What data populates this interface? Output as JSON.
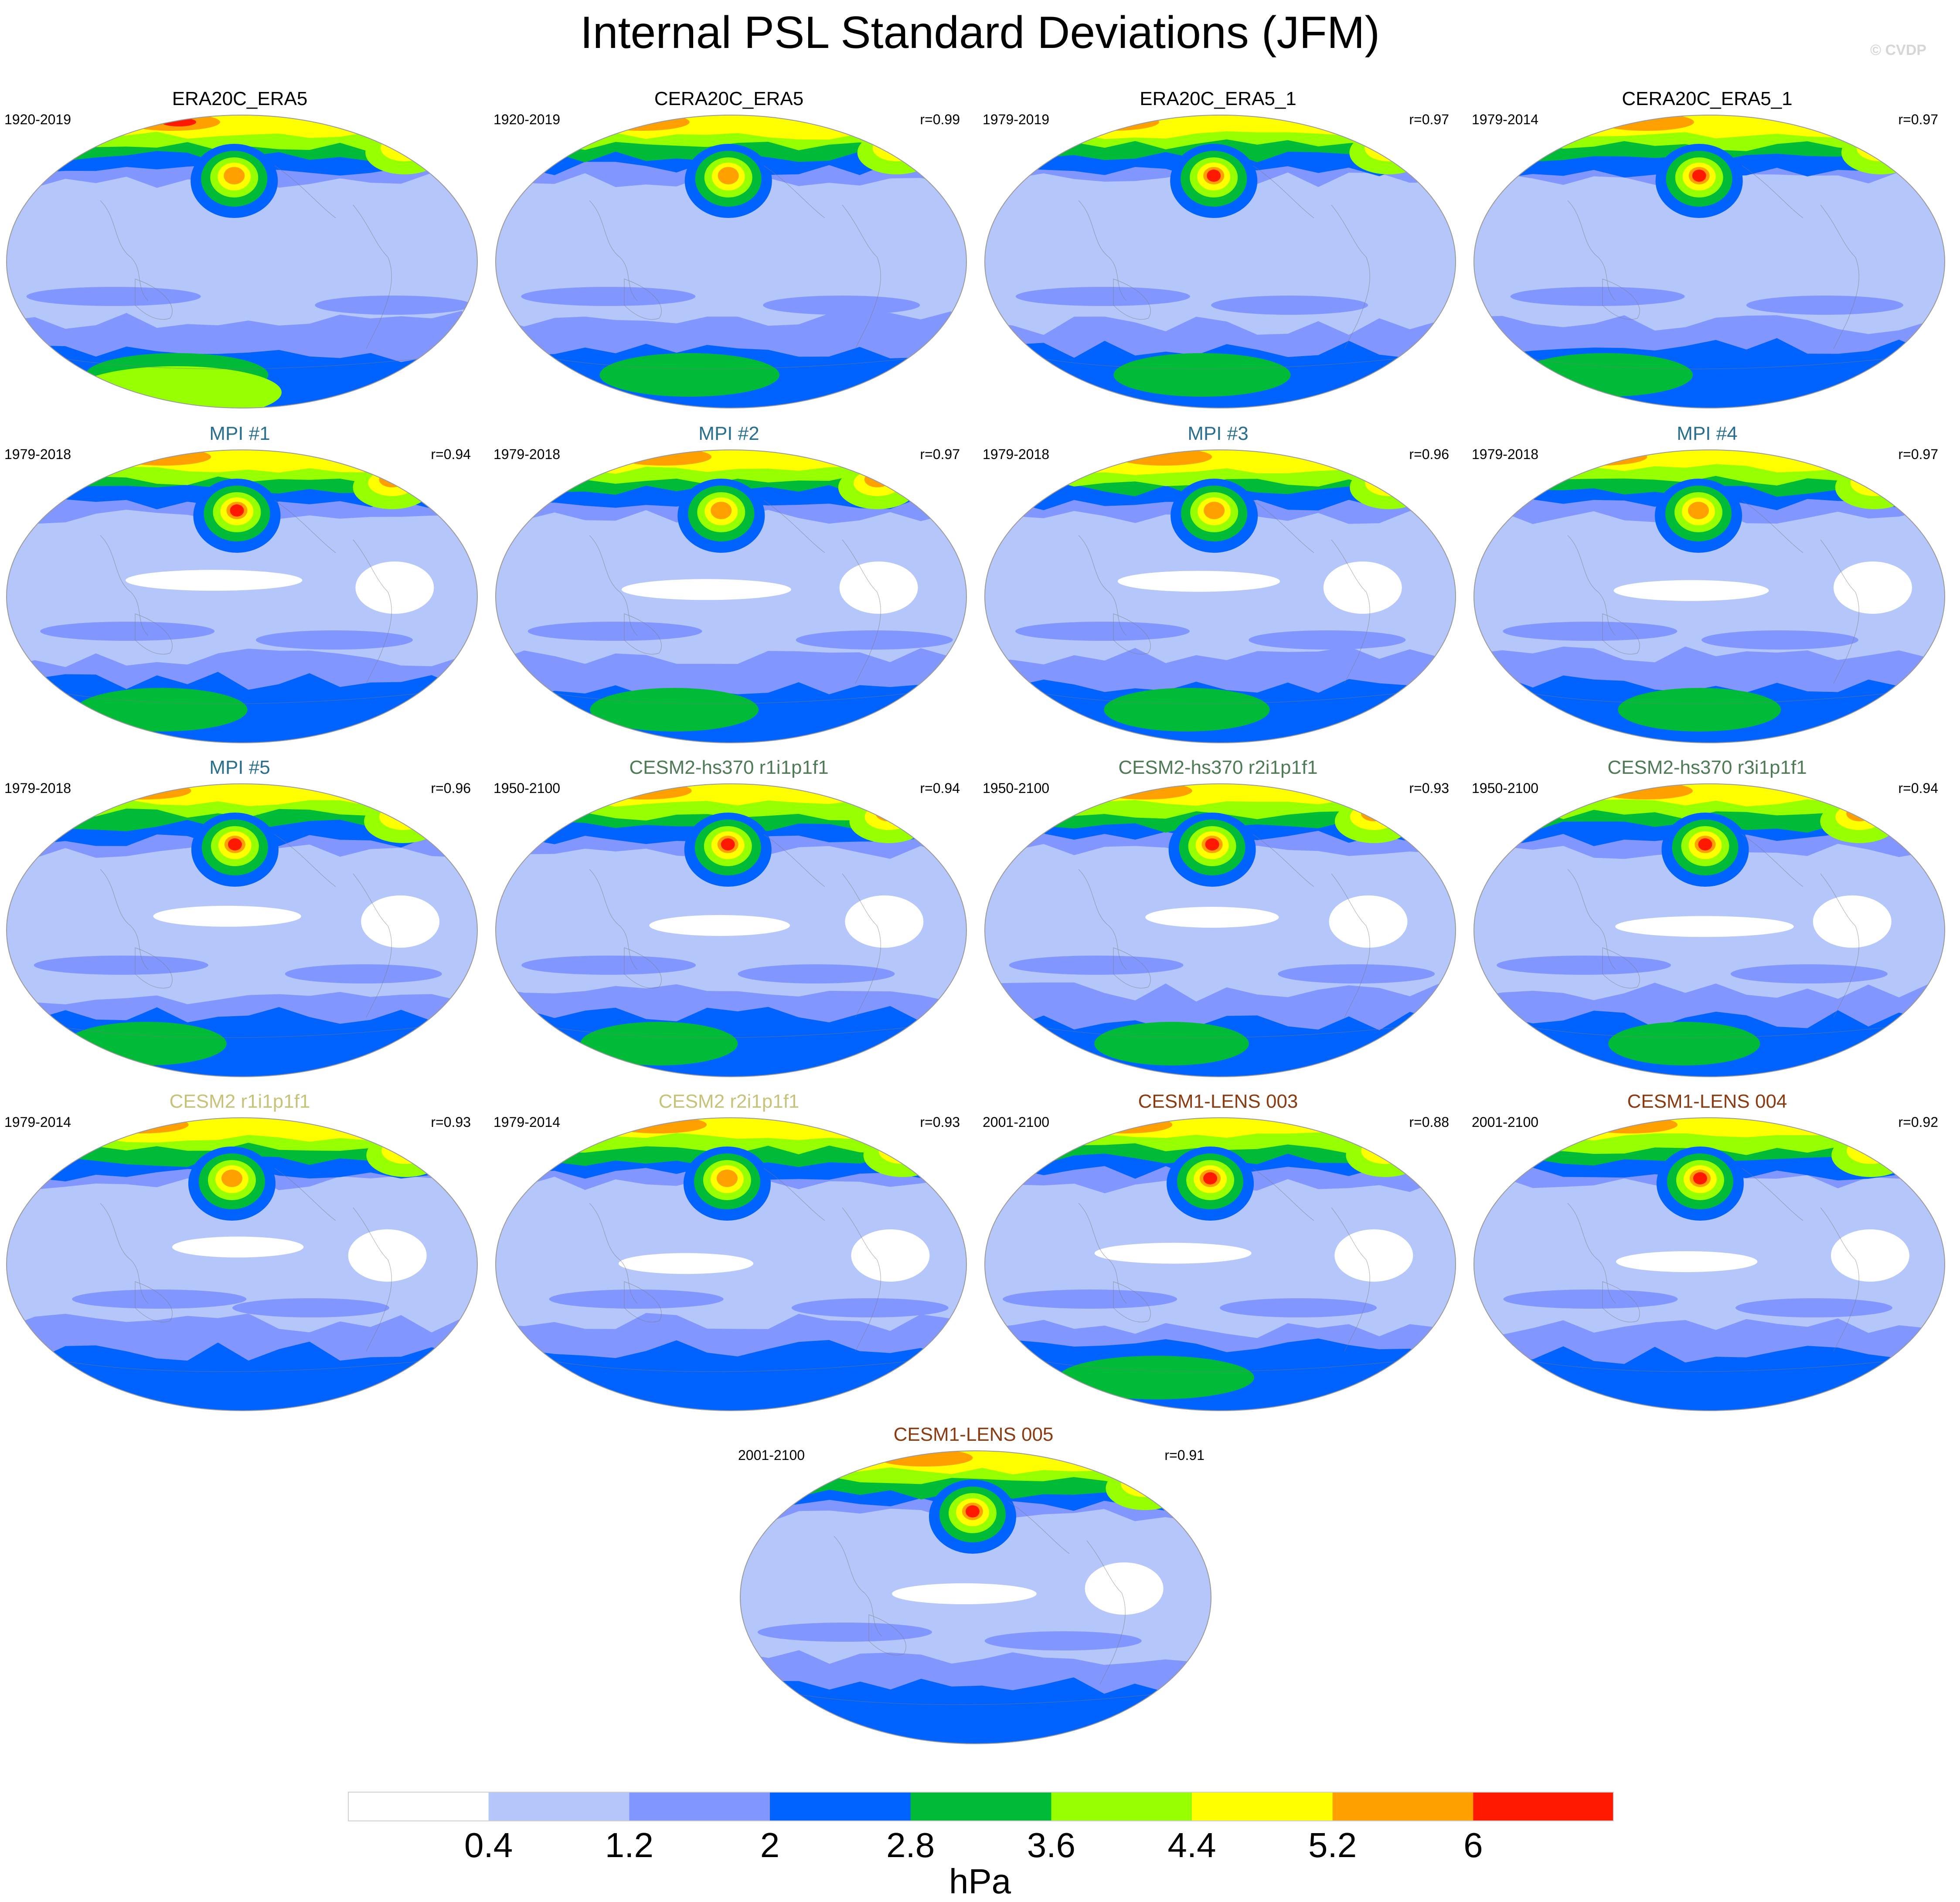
{
  "title": "Internal PSL Standard Deviations (JFM)",
  "watermark": "© CVDP",
  "colors": {
    "black": "#000000",
    "mpi": "#2a6e8e",
    "cesm2hs": "#4e7a56",
    "cesm2": "#c7c27a",
    "lens": "#8a3b12"
  },
  "levels": [
    "#ffffff",
    "#b4c6fa",
    "#8296ff",
    "#0062ff",
    "#00bb37",
    "#96ff00",
    "#ffff00",
    "#ffa000",
    "#ff1900"
  ],
  "colorbar": {
    "ticks": [
      "0.4",
      "1.2",
      "2",
      "2.8",
      "3.6",
      "4.4",
      "5.2",
      "6"
    ],
    "unit": "hPa"
  },
  "panels": [
    {
      "title": "ERA20C_ERA5",
      "color": "black",
      "years": "1920-2019",
      "r": "",
      "variant": 0
    },
    {
      "title": "CERA20C_ERA5",
      "color": "black",
      "years": "1920-2019",
      "r": "r=0.99",
      "variant": 1
    },
    {
      "title": "ERA20C_ERA5_1",
      "color": "black",
      "years": "1979-2019",
      "r": "r=0.97",
      "variant": 2
    },
    {
      "title": "CERA20C_ERA5_1",
      "color": "black",
      "years": "1979-2014",
      "r": "r=0.97",
      "variant": 3
    },
    {
      "title": "MPI #1",
      "color": "mpi",
      "years": "1979-2018",
      "r": "r=0.94",
      "variant": 4
    },
    {
      "title": "MPI #2",
      "color": "mpi",
      "years": "1979-2018",
      "r": "r=0.97",
      "variant": 5
    },
    {
      "title": "MPI #3",
      "color": "mpi",
      "years": "1979-2018",
      "r": "r=0.96",
      "variant": 6
    },
    {
      "title": "MPI #4",
      "color": "mpi",
      "years": "1979-2018",
      "r": "r=0.97",
      "variant": 7
    },
    {
      "title": "MPI #5",
      "color": "mpi",
      "years": "1979-2018",
      "r": "r=0.96",
      "variant": 8
    },
    {
      "title": "CESM2-hs370 r1i1p1f1",
      "color": "cesm2hs",
      "years": "1950-2100",
      "r": "r=0.94",
      "variant": 9
    },
    {
      "title": "CESM2-hs370 r2i1p1f1",
      "color": "cesm2hs",
      "years": "1950-2100",
      "r": "r=0.93",
      "variant": 10
    },
    {
      "title": "CESM2-hs370 r3i1p1f1",
      "color": "cesm2hs",
      "years": "1950-2100",
      "r": "r=0.94",
      "variant": 11
    },
    {
      "title": "CESM2 r1i1p1f1",
      "color": "cesm2",
      "years": "1979-2014",
      "r": "r=0.93",
      "variant": 12
    },
    {
      "title": "CESM2 r2i1p1f1",
      "color": "cesm2",
      "years": "1979-2014",
      "r": "r=0.93",
      "variant": 13
    },
    {
      "title": "CESM1-LENS 003",
      "color": "lens",
      "years": "2001-2100",
      "r": "r=0.88",
      "variant": 14
    },
    {
      "title": "CESM1-LENS 004",
      "color": "lens",
      "years": "2001-2100",
      "r": "r=0.92",
      "variant": 15
    },
    {
      "title": "CESM1-LENS 005",
      "color": "lens",
      "years": "2001-2100",
      "r": "r=0.91",
      "variant": 16
    }
  ]
}
